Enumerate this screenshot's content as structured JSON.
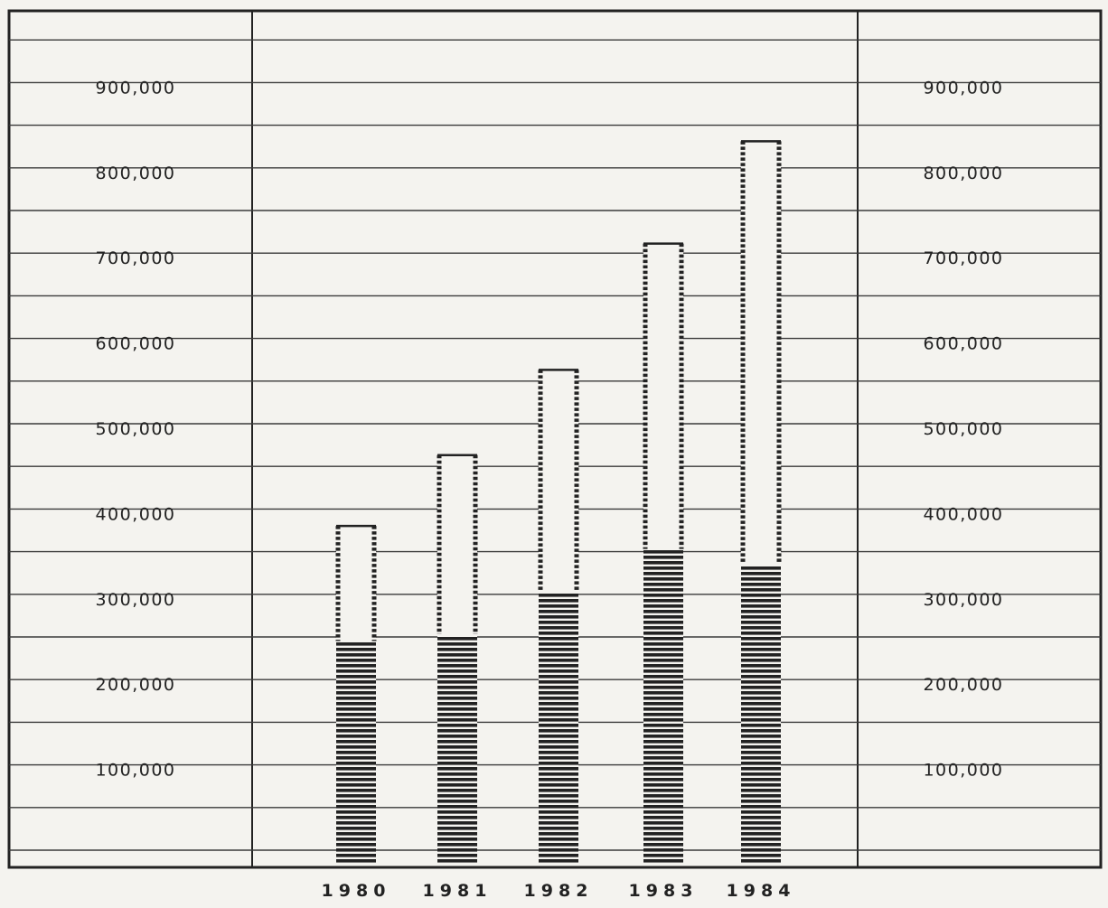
{
  "chart_data": {
    "type": "bar",
    "title": "",
    "xlabel": "",
    "ylabel": "",
    "categories": [
      "1980",
      "1981",
      "1982",
      "1983",
      "1984"
    ],
    "series": [
      {
        "style": "solid-hatch",
        "values": [
          260000,
          268000,
          318000,
          368000,
          352000
        ]
      },
      {
        "style": "open-dashed",
        "values": [
          135000,
          210000,
          260000,
          358000,
          494000
        ]
      }
    ],
    "totals": [
      395000,
      478000,
      578000,
      726000,
      846000
    ],
    "yticks": [
      "100,000",
      "200,000",
      "300,000",
      "400,000",
      "500,000",
      "600,000",
      "700,000",
      "800,000",
      "900,000"
    ],
    "ylim": [
      0,
      1000000
    ],
    "grid": true,
    "colors": {
      "ink": "#222222",
      "grid": "#3a3a3a",
      "paper": "#f4f3ef"
    }
  }
}
